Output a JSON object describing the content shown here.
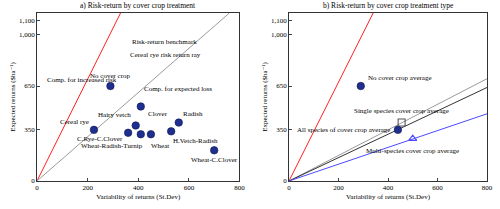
{
  "chart_data": [
    {
      "type": "scatter",
      "title": "a) Risk-return by cover crop treatment",
      "x_label": "Variability of returns (St.Dev)",
      "y_label": "Expected returns ($ha⁻¹)",
      "xlim": [
        0,
        800
      ],
      "ylim": [
        0,
        1150
      ],
      "xticks": [
        0,
        200,
        400,
        600,
        800
      ],
      "yticks": [
        0,
        350,
        650,
        {
          "value": 1000,
          "label": "1,000"
        },
        {
          "value": 1100,
          "label": "1,100"
        }
      ],
      "grid": false,
      "annotations": [
        "Comp. for increased risk",
        "Comp. for expected loss"
      ],
      "series": [
        {
          "name": "Risk-return benchmark",
          "type": "line",
          "color": "#ff2020",
          "x": [
            0,
            330
          ],
          "values": [
            0,
            1150
          ]
        },
        {
          "name": "Cereal rye risk return ray",
          "type": "line",
          "color": "#9a9a9a",
          "x": [
            0,
            760
          ],
          "values": [
            0,
            1150
          ]
        },
        {
          "name": "No cover crop",
          "type": "scatter",
          "marker": "circle",
          "color": "#1f2f8f",
          "x": [
            290
          ],
          "values": [
            650
          ]
        },
        {
          "name": "Cereal rye",
          "type": "scatter",
          "marker": "circle",
          "color": "#1f2f8f",
          "x": [
            225
          ],
          "values": [
            350
          ]
        },
        {
          "name": "Hairy vetch",
          "type": "scatter",
          "marker": "circle",
          "color": "#1f2f8f",
          "x": [
            390
          ],
          "values": [
            380
          ]
        },
        {
          "name": "Clover",
          "type": "scatter",
          "marker": "circle",
          "color": "#1f2f8f",
          "x": [
            410
          ],
          "values": [
            510
          ]
        },
        {
          "name": "Radish",
          "type": "scatter",
          "marker": "circle",
          "color": "#1f2f8f",
          "x": [
            560
          ],
          "values": [
            400
          ]
        },
        {
          "name": "C.Rye-C.Clover",
          "type": "scatter",
          "marker": "circle",
          "color": "#1f2f8f",
          "x": [
            360
          ],
          "values": [
            330
          ]
        },
        {
          "name": "Wheat-Radish-Turnip",
          "type": "scatter",
          "marker": "circle",
          "color": "#1f2f8f",
          "x": [
            410
          ],
          "values": [
            320
          ]
        },
        {
          "name": "Wheat",
          "type": "scatter",
          "marker": "circle",
          "color": "#1f2f8f",
          "x": [
            450
          ],
          "values": [
            320
          ]
        },
        {
          "name": "H.Vetch-Radish",
          "type": "scatter",
          "marker": "circle",
          "color": "#1f2f8f",
          "x": [
            530
          ],
          "values": [
            340
          ]
        },
        {
          "name": "Wheat-C.Clover",
          "type": "scatter",
          "marker": "circle",
          "color": "#1f2f8f",
          "x": [
            700
          ],
          "values": [
            210
          ]
        }
      ]
    },
    {
      "type": "scatter",
      "title": "b) Risk-return by cover crop treatment type",
      "x_label": "Variability of returns (St.Dev)",
      "y_label": "Expected returns ($ha⁻¹)",
      "xlim": [
        0,
        800
      ],
      "ylim": [
        0,
        1150
      ],
      "xticks": [
        0,
        200,
        400,
        600,
        800
      ],
      "yticks": [
        0,
        350,
        650,
        {
          "value": 1000,
          "label": "1,000"
        },
        {
          "value": 1100,
          "label": "1,100"
        }
      ],
      "grid": false,
      "series": [
        {
          "type": "line",
          "color": "#ff2020",
          "x": [
            0,
            340
          ],
          "values": [
            0,
            1150
          ]
        },
        {
          "type": "line",
          "color": "#9a9a9a",
          "x": [
            0,
            800
          ],
          "values": [
            0,
            700
          ]
        },
        {
          "type": "line",
          "color": "#333333",
          "x": [
            0,
            800
          ],
          "values": [
            0,
            640
          ]
        },
        {
          "type": "line",
          "color": "#4a4aff",
          "x": [
            0,
            800
          ],
          "values": [
            0,
            460
          ]
        },
        {
          "name": "No cover crop average",
          "type": "scatter",
          "marker": "circle",
          "color": "#1f2f8f",
          "x": [
            290
          ],
          "values": [
            650
          ]
        },
        {
          "name": "Single species cover crop average",
          "type": "scatter",
          "marker": "square-open",
          "color": "#555555",
          "x": [
            455
          ],
          "values": [
            400
          ]
        },
        {
          "name": "All species of cover crop average",
          "type": "scatter",
          "marker": "circle",
          "color": "#1f2f8f",
          "x": [
            440
          ],
          "values": [
            350
          ]
        },
        {
          "name": "Multi-species cover crop average",
          "type": "scatter",
          "marker": "triangle-up-open",
          "color": "#4a4aff",
          "x": [
            500
          ],
          "values": [
            290
          ]
        }
      ]
    }
  ]
}
